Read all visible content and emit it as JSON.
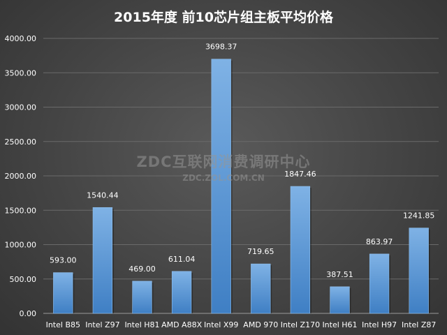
{
  "chart_data": {
    "type": "bar",
    "title": "2015年度 前10芯片组主板平均价格",
    "categories": [
      "Intel B85",
      "Intel Z97",
      "Intel H81",
      "AMD A88X",
      "Intel X99",
      "AMD 970",
      "Intel Z170",
      "Intel H61",
      "Intel H97",
      "Intel Z87"
    ],
    "values": [
      593.0,
      1540.44,
      469.0,
      611.04,
      3698.37,
      719.65,
      1847.46,
      387.51,
      863.97,
      1241.85
    ],
    "data_labels": [
      "593.00",
      "1540.44",
      "469.00",
      "611.04",
      "3698.37",
      "719.65",
      "1847.46",
      "387.51",
      "863.97",
      "1241.85"
    ],
    "y_ticks": [
      "0.00",
      "500.00",
      "1000.00",
      "1500.00",
      "2000.00",
      "2500.00",
      "3000.00",
      "3500.00",
      "4000.00"
    ],
    "ylim": [
      0,
      4000
    ],
    "grid": true,
    "bar_color": "#5b9bd5",
    "xlabel": "",
    "ylabel": ""
  },
  "watermark": {
    "main": "ZDC互联网消费调研中心",
    "sub": "ZDC.ZOL.COM.CN"
  }
}
